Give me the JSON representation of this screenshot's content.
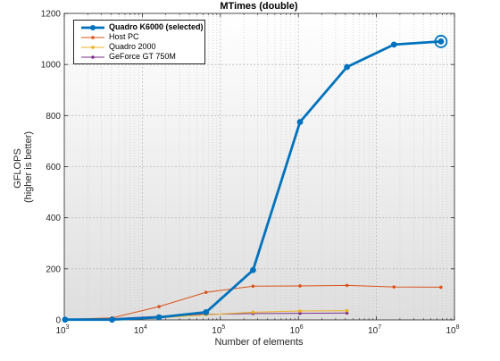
{
  "chart_data": {
    "type": "line",
    "title": "MTimes (double)",
    "xlabel": "Number of elements",
    "ylabel_lines": [
      "GFLOPS",
      "(higher is better)"
    ],
    "xscale": "log",
    "xlim": [
      1000,
      100000000
    ],
    "ylim": [
      0,
      1200
    ],
    "xticks": [
      {
        "value": 1000,
        "base": "10",
        "exp": "3"
      },
      {
        "value": 10000,
        "base": "10",
        "exp": "4"
      },
      {
        "value": 100000,
        "base": "10",
        "exp": "5"
      },
      {
        "value": 1000000,
        "base": "10",
        "exp": "6"
      },
      {
        "value": 10000000,
        "base": "10",
        "exp": "7"
      },
      {
        "value": 100000000,
        "base": "10",
        "exp": "8"
      }
    ],
    "yticks": [
      0,
      200,
      400,
      600,
      800,
      1000,
      1200
    ],
    "grid": true,
    "legend_position": "top-left",
    "series": [
      {
        "name": "Quadro K6000 (selected)",
        "color": "#0072BD",
        "selected": true,
        "x": [
          1024,
          4096,
          16384,
          65536,
          262144,
          1048576,
          4194304,
          16777216,
          67108864
        ],
        "y": [
          1,
          1,
          10,
          30,
          195,
          775,
          990,
          1078,
          1090
        ]
      },
      {
        "name": "Host PC",
        "color": "#D95319",
        "x": [
          1024,
          4096,
          16384,
          65536,
          262144,
          1048576,
          4194304,
          16777216,
          67108864
        ],
        "y": [
          2,
          8,
          52,
          108,
          132,
          133,
          135,
          129,
          128
        ]
      },
      {
        "name": "Quadro 2000",
        "color": "#EDB120",
        "x": [
          1024,
          4096,
          16384,
          65536,
          262144,
          1048576,
          4194304
        ],
        "y": [
          1,
          3,
          8,
          20,
          30,
          35,
          36
        ]
      },
      {
        "name": "GeForce GT 750M",
        "color": "#7E2F8E",
        "x": [
          1024,
          4096,
          16384,
          65536,
          262144,
          1048576,
          4194304
        ],
        "y": [
          1,
          5,
          14,
          22,
          25,
          26,
          27
        ]
      }
    ]
  }
}
